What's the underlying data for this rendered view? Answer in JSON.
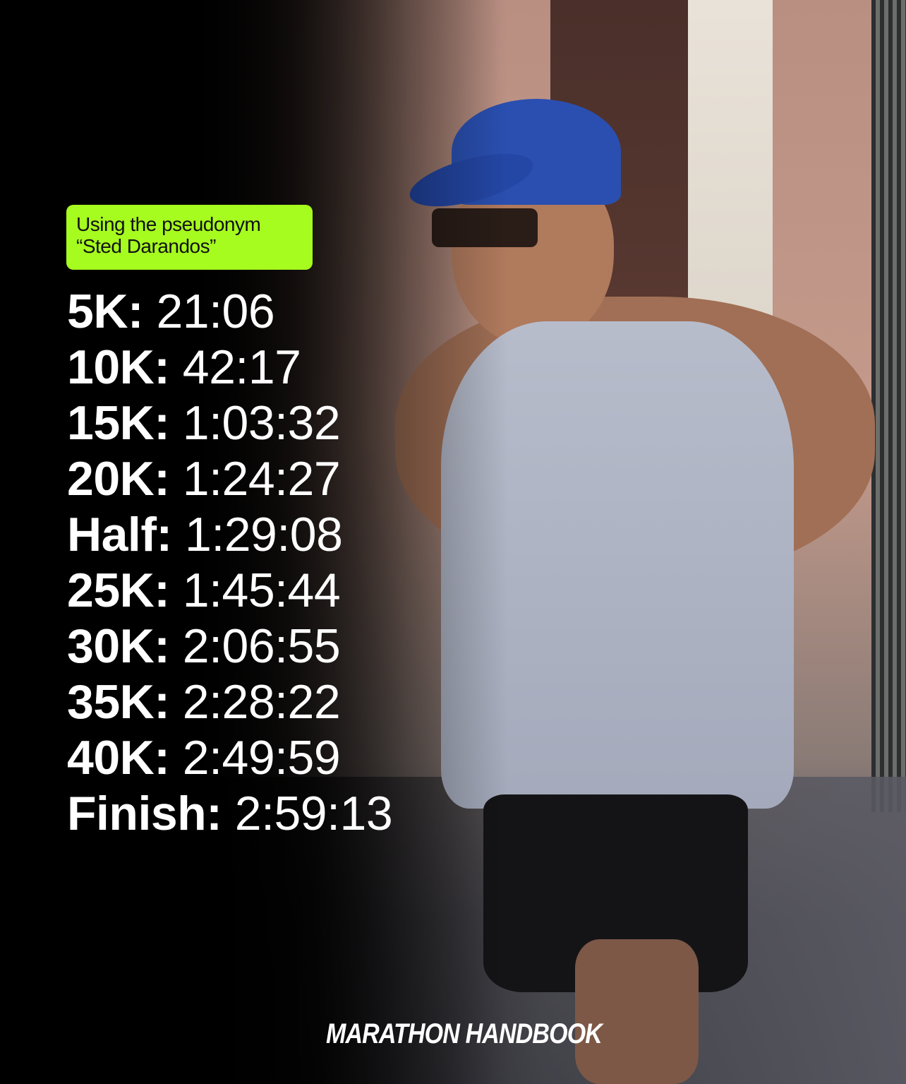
{
  "badge": {
    "line1": "Using the pseudonym",
    "line2": "“Sted Darandos”",
    "color": "#a6fb1f"
  },
  "splits": [
    {
      "label": "5K:",
      "time": "21:06"
    },
    {
      "label": "10K:",
      "time": "42:17"
    },
    {
      "label": "15K:",
      "time": "1:03:32"
    },
    {
      "label": "20K:",
      "time": "1:24:27"
    },
    {
      "label": "Half:",
      "time": "1:29:08"
    },
    {
      "label": "25K:",
      "time": "1:45:44"
    },
    {
      "label": "30K:",
      "time": "2:06:55"
    },
    {
      "label": "35K:",
      "time": "2:28:22"
    },
    {
      "label": "40K:",
      "time": "2:49:59"
    },
    {
      "label": "Finish:",
      "time": "2:59:13"
    }
  ],
  "logo": "MARATHON HANDBOOK"
}
